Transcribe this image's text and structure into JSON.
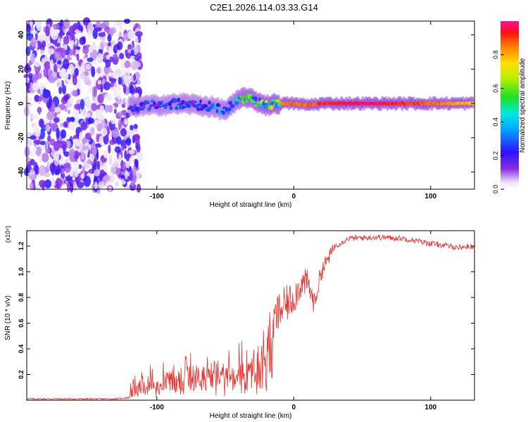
{
  "title": "C2E1.2026.114.03.33.G14",
  "colors": {
    "axis": "#000000",
    "snr_line": "#e8302a",
    "scatter_fill": "#7a2ae0",
    "background": "#ffffff"
  },
  "chart_data": [
    {
      "type": "heatmap",
      "name": "spectrogram",
      "xlabel": "Height of straight line (km)",
      "ylabel": "Frequency (Hz)",
      "xlim": [
        -195,
        132
      ],
      "ylim": [
        -50,
        48
      ],
      "xticks": [
        -100,
        0,
        100
      ],
      "yticks": [
        -40,
        -20,
        0,
        20,
        40
      ],
      "colorbar": {
        "label": "Normalized spectral amplitude",
        "range": [
          0,
          1
        ],
        "ticks": [
          0.0,
          0.2,
          0.4,
          0.6,
          0.8
        ]
      },
      "features": {
        "noise_region_x": [
          -195,
          -120
        ],
        "ridge": {
          "x": [
            -120,
            -100,
            -80,
            -60,
            -50,
            -40,
            -35,
            -30,
            -20,
            -10,
            0,
            10,
            20,
            40,
            60,
            80,
            100,
            120,
            132
          ],
          "y": [
            -2,
            -1,
            0,
            -2,
            -4,
            2,
            4,
            2,
            -1,
            0,
            0,
            -1,
            0,
            0,
            0,
            0,
            0,
            0,
            0
          ],
          "amp": [
            0.3,
            0.35,
            0.35,
            0.4,
            0.45,
            0.6,
            0.7,
            0.7,
            0.75,
            0.85,
            0.9,
            0.9,
            0.95,
            1.0,
            1.0,
            0.95,
            0.9,
            0.85,
            0.8
          ]
        }
      }
    },
    {
      "type": "line",
      "name": "snr",
      "xlabel": "Height of straight line (km)",
      "ylabel": "SNR (10 * v/v)",
      "yscale_label": "(x10⁴)",
      "xlim": [
        -195,
        132
      ],
      "ylim": [
        0,
        1.32
      ],
      "xticks": [
        -100,
        0,
        100
      ],
      "yticks": [
        0.2,
        0.4,
        0.6,
        0.8,
        1.0,
        1.2
      ],
      "series": [
        {
          "name": "SNR",
          "x": [
            -195,
            -160,
            -130,
            -120,
            -110,
            -100,
            -80,
            -60,
            -40,
            -30,
            -25,
            -20,
            -15,
            -10,
            0,
            5,
            10,
            15,
            20,
            30,
            40,
            60,
            80,
            100,
            120,
            132
          ],
          "y": [
            0.01,
            0.01,
            0.01,
            0.02,
            0.08,
            0.12,
            0.2,
            0.22,
            0.24,
            0.3,
            0.4,
            0.55,
            0.6,
            0.7,
            0.8,
            0.9,
            0.92,
            0.75,
            1.0,
            1.2,
            1.26,
            1.27,
            1.26,
            1.22,
            1.19,
            1.2
          ]
        }
      ]
    }
  ]
}
